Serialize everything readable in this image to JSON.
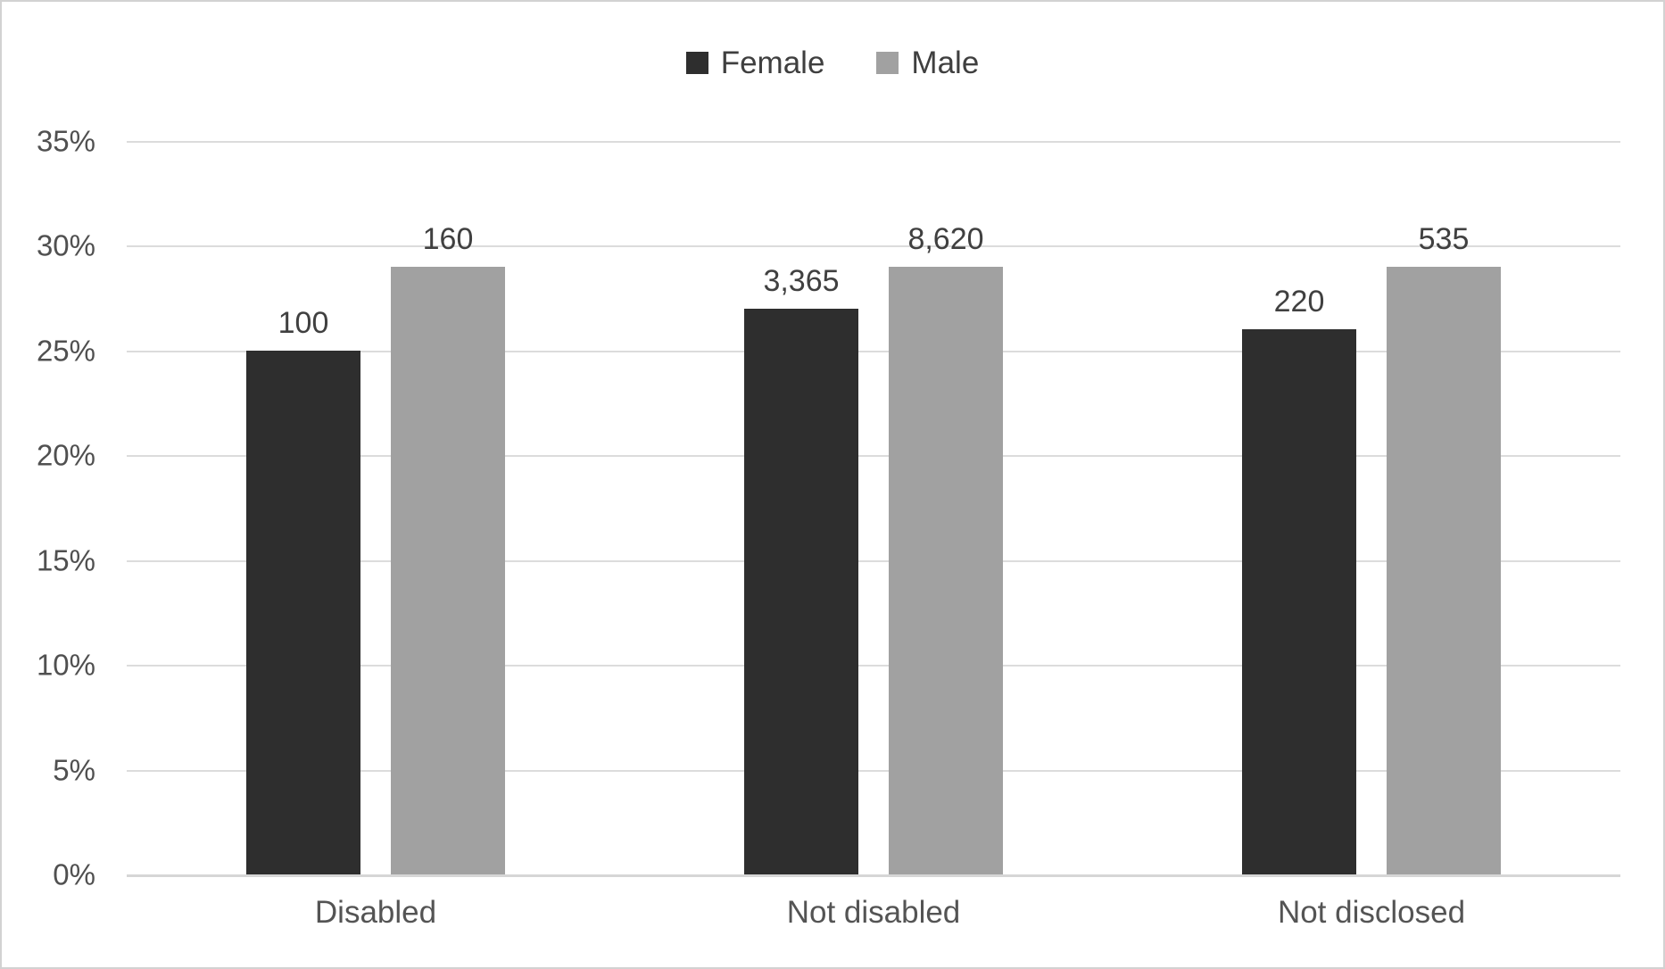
{
  "chart_data": {
    "type": "bar",
    "title": "",
    "categories": [
      "Disabled",
      "Not disabled",
      "Not disclosed"
    ],
    "series": [
      {
        "name": "Female",
        "color": "#2e2e2e",
        "values_percent": [
          25,
          27,
          26
        ],
        "data_labels": [
          "100",
          "3,365",
          "220"
        ]
      },
      {
        "name": "Male",
        "color": "#a1a1a1",
        "values_percent": [
          29,
          29,
          29
        ],
        "data_labels": [
          "160",
          "8,620",
          "535"
        ]
      }
    ],
    "y_axis": {
      "min": 0,
      "max": 35,
      "tick_step": 5,
      "tick_labels": [
        "35%",
        "30%",
        "25%",
        "20%",
        "15%",
        "10%",
        "5%",
        "0%"
      ],
      "format": "percent"
    },
    "x_axis": {
      "labels": [
        "Disabled",
        "Not disabled",
        "Not disclosed"
      ]
    },
    "legend": {
      "position": "top",
      "entries": [
        "Female",
        "Male"
      ]
    },
    "grid": "horizontal"
  },
  "colors": {
    "female_bar": "#2e2e2e",
    "male_bar": "#a1a1a1",
    "gridline": "#dcdcdc",
    "axis_line": "#d6d6d6",
    "tick_label": "#505050",
    "data_label": "#404040",
    "category_label": "#545454",
    "legend_label": "#3f3f3f",
    "frame_border": "#d2d2d2",
    "background": "#ffffff"
  }
}
